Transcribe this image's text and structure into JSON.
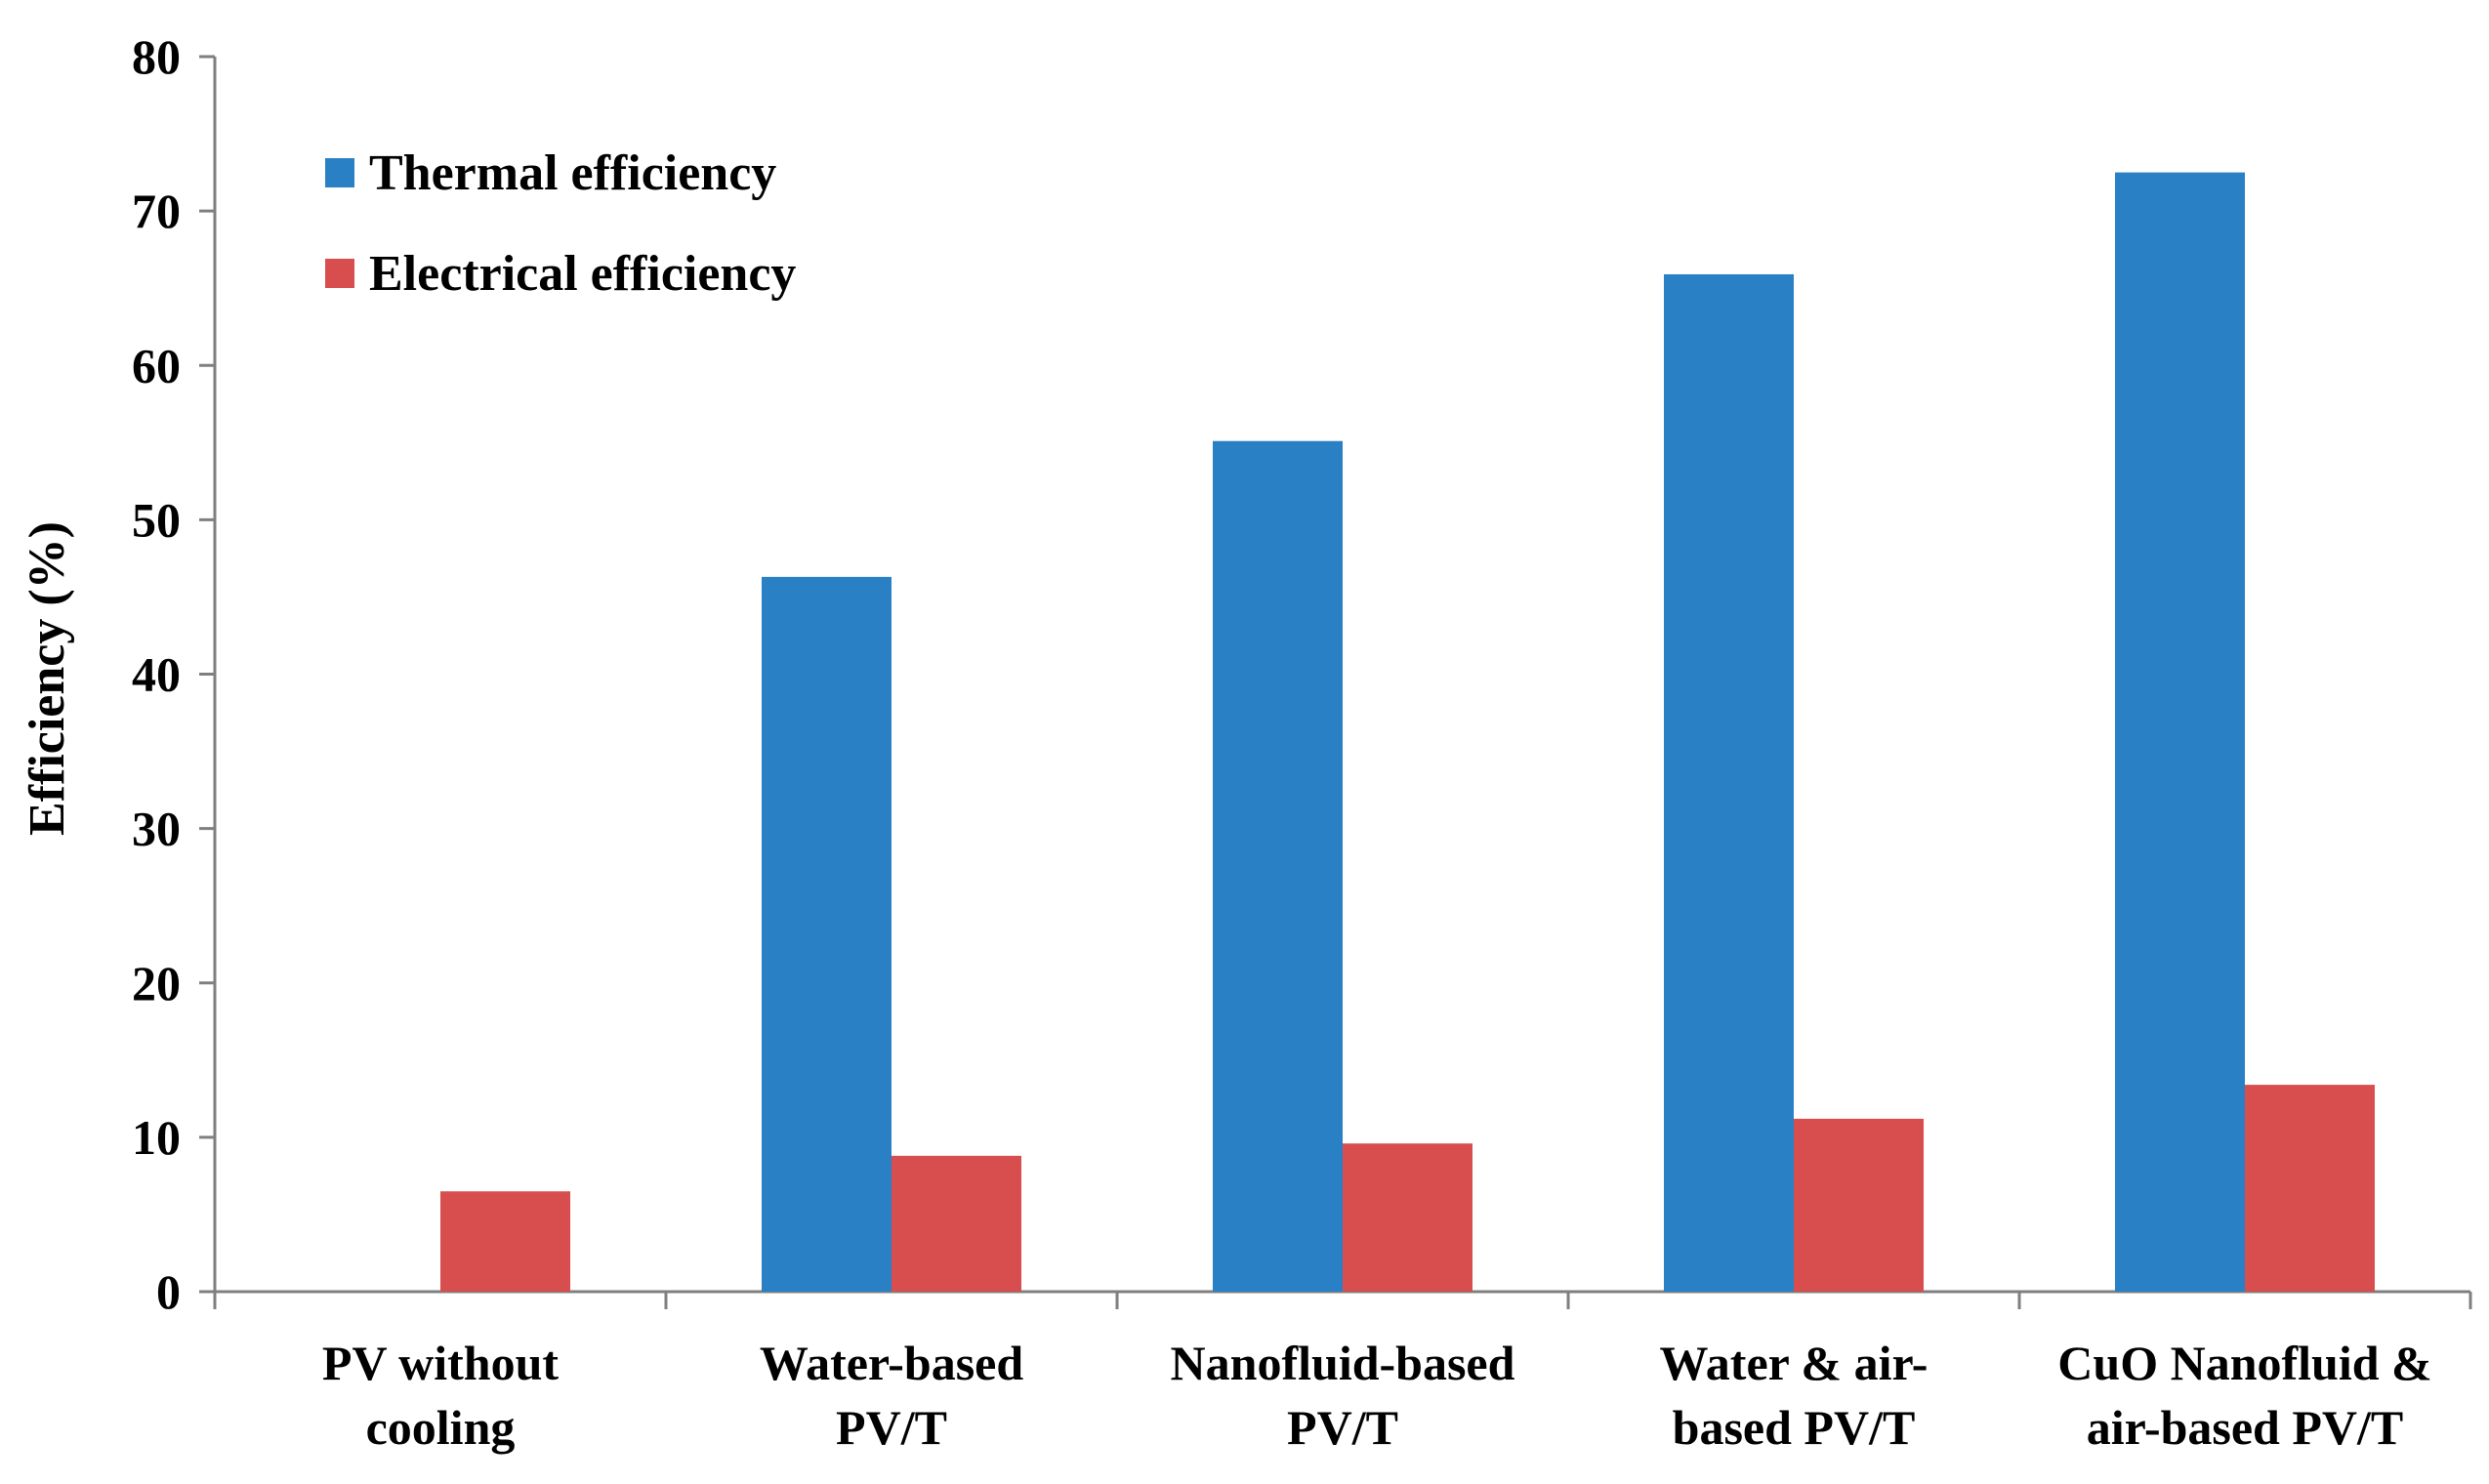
{
  "chart_data": {
    "type": "bar",
    "title": "",
    "xlabel": "",
    "ylabel": "Efficiency (%)",
    "ylim": [
      0,
      80
    ],
    "yticks": [
      0,
      10,
      20,
      30,
      40,
      50,
      60,
      70,
      80
    ],
    "grid": false,
    "legend_position": "top-left",
    "categories": [
      [
        "PV without",
        "cooling"
      ],
      [
        "Water-based",
        "PV/T"
      ],
      [
        "Nanofluid-based",
        "PV/T"
      ],
      [
        "Water & air-",
        "based PV/T"
      ],
      [
        "CuO Nanofluid &",
        "air-based PV/T"
      ]
    ],
    "series": [
      {
        "name": "Thermal efficiency",
        "color": "#2980c4",
        "values": [
          0,
          46.3,
          55.1,
          65.9,
          72.5
        ]
      },
      {
        "name": "Electrical efficiency",
        "color": "#d84e4e",
        "values": [
          6.5,
          8.8,
          9.6,
          11.2,
          13.4
        ]
      }
    ]
  }
}
